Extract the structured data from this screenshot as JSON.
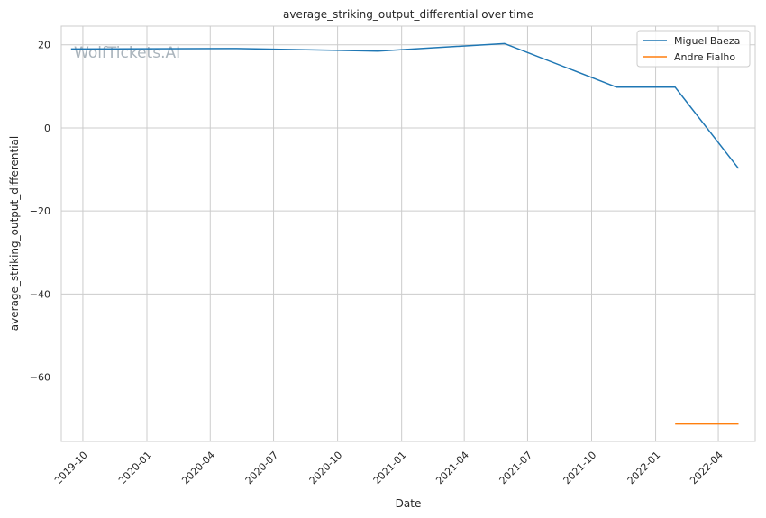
{
  "chart_data": {
    "type": "line",
    "title": "average_striking_output_differential over time",
    "xlabel": "Date",
    "ylabel": "average_striking_output_differential",
    "watermark": "WolfTickets.AI",
    "x_ticks": [
      "2019-10",
      "2020-01",
      "2020-04",
      "2020-07",
      "2020-10",
      "2021-01",
      "2021-04",
      "2021-07",
      "2021-10",
      "2022-01",
      "2022-04"
    ],
    "y_ticks": [
      20,
      0,
      -20,
      -40,
      -60
    ],
    "xlim": [
      "2019-08-31",
      "2022-05-24"
    ],
    "ylim": [
      -75.5,
      24.5
    ],
    "grid": true,
    "legend_position": "top-right",
    "series": [
      {
        "name": "Miguel Baeza",
        "color": "#1f77b4",
        "x": [
          "2019-09-14",
          "2020-05-09",
          "2020-11-28",
          "2021-05-29",
          "2021-11-06",
          "2022-01-29",
          "2022-04-30"
        ],
        "y": [
          19.0,
          19.1,
          18.5,
          20.3,
          9.8,
          9.8,
          -9.8
        ]
      },
      {
        "name": "Andre Fialho",
        "color": "#ff7f0e",
        "x": [
          "2022-01-29",
          "2022-04-30"
        ],
        "y": [
          -71.3,
          -71.3
        ]
      }
    ]
  }
}
